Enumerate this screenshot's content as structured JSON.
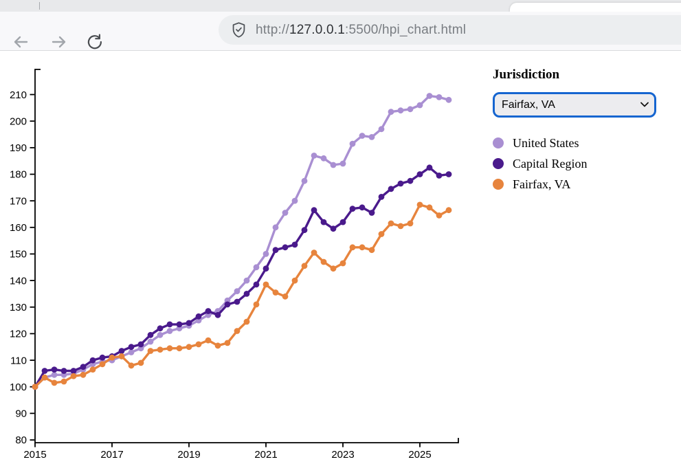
{
  "browser": {
    "url_prefix": "http://",
    "url_host": "127.0.0.1",
    "url_rest": ":5500/hpi_chart.html"
  },
  "panel": {
    "label": "Jurisdiction",
    "select_value": "Fairfax, VA",
    "legend": [
      {
        "label": "United States",
        "color": "#A98FD2"
      },
      {
        "label": "Capital Region",
        "color": "#4A1A8C"
      },
      {
        "label": "Fairfax, VA",
        "color": "#E7843D"
      }
    ]
  },
  "chart_data": {
    "type": "line",
    "x": [
      "2015 Q1",
      "2015 Q2",
      "2015 Q3",
      "2015 Q4",
      "2016 Q1",
      "2016 Q2",
      "2016 Q3",
      "2016 Q4",
      "2017 Q1",
      "2017 Q2",
      "2017 Q3",
      "2017 Q4",
      "2018 Q1",
      "2018 Q2",
      "2018 Q3",
      "2018 Q4",
      "2019 Q1",
      "2019 Q2",
      "2019 Q3",
      "2019 Q4",
      "2020 Q1",
      "2020 Q2",
      "2020 Q3",
      "2020 Q4",
      "2021 Q1",
      "2021 Q2",
      "2021 Q3",
      "2021 Q4",
      "2022 Q1",
      "2022 Q2",
      "2022 Q3",
      "2022 Q4",
      "2023 Q1",
      "2023 Q2",
      "2023 Q3",
      "2023 Q4",
      "2024 Q1",
      "2024 Q2",
      "2024 Q3",
      "2024 Q4",
      "2025 Q1",
      "2025 Q2",
      "2025 Q3",
      "2025 Q4"
    ],
    "series": [
      {
        "name": "United States",
        "color": "#A98FD2",
        "values": [
          100,
          103.5,
          104.5,
          104.5,
          105,
          106.5,
          108.5,
          109.5,
          110,
          111.5,
          113,
          114.5,
          117,
          119.5,
          121,
          122,
          123,
          125,
          127,
          128.5,
          132.5,
          136,
          140,
          145,
          150,
          160,
          165.5,
          170,
          177.5,
          187,
          186,
          183.5,
          184,
          191.5,
          194.5,
          194,
          197,
          203.5,
          204,
          204.5,
          206,
          209.5,
          209,
          208
        ]
      },
      {
        "name": "Capital Region",
        "color": "#4A1A8C",
        "values": [
          100,
          106,
          106.5,
          106,
          106,
          107.5,
          110,
          111,
          111.5,
          113.5,
          115,
          116,
          119.5,
          122,
          123.5,
          123.5,
          124,
          126.5,
          128.5,
          127,
          131,
          132,
          135,
          138.5,
          144.5,
          151.5,
          152.5,
          153.5,
          159,
          166.5,
          162,
          159.5,
          162,
          167,
          167.5,
          165.5,
          171.5,
          174.5,
          176.5,
          177.5,
          180,
          182.5,
          179.5,
          180
        ]
      },
      {
        "name": "Fairfax, VA",
        "color": "#E7843D",
        "values": [
          100,
          103.5,
          101.5,
          102,
          104,
          104.5,
          106.5,
          108.5,
          111,
          111.5,
          108,
          109,
          113.5,
          114,
          114.5,
          114.5,
          115,
          116,
          117.5,
          115.5,
          116.5,
          121,
          124.5,
          131,
          138.5,
          135.5,
          134,
          140,
          145.5,
          150.5,
          147,
          144.5,
          146.5,
          152.5,
          152.5,
          151.5,
          157.5,
          161.5,
          160.5,
          161.5,
          168.5,
          167.5,
          164.5,
          166.5
        ]
      }
    ],
    "title": "",
    "xlabel": "",
    "ylabel": "",
    "xticks": [
      2015,
      2017,
      2019,
      2021,
      2023,
      2025
    ],
    "yticks": [
      80,
      90,
      100,
      110,
      120,
      130,
      140,
      150,
      160,
      170,
      180,
      190,
      200,
      210
    ],
    "ylim": [
      80,
      220
    ],
    "grid": false,
    "legend_position": "right-panel"
  }
}
